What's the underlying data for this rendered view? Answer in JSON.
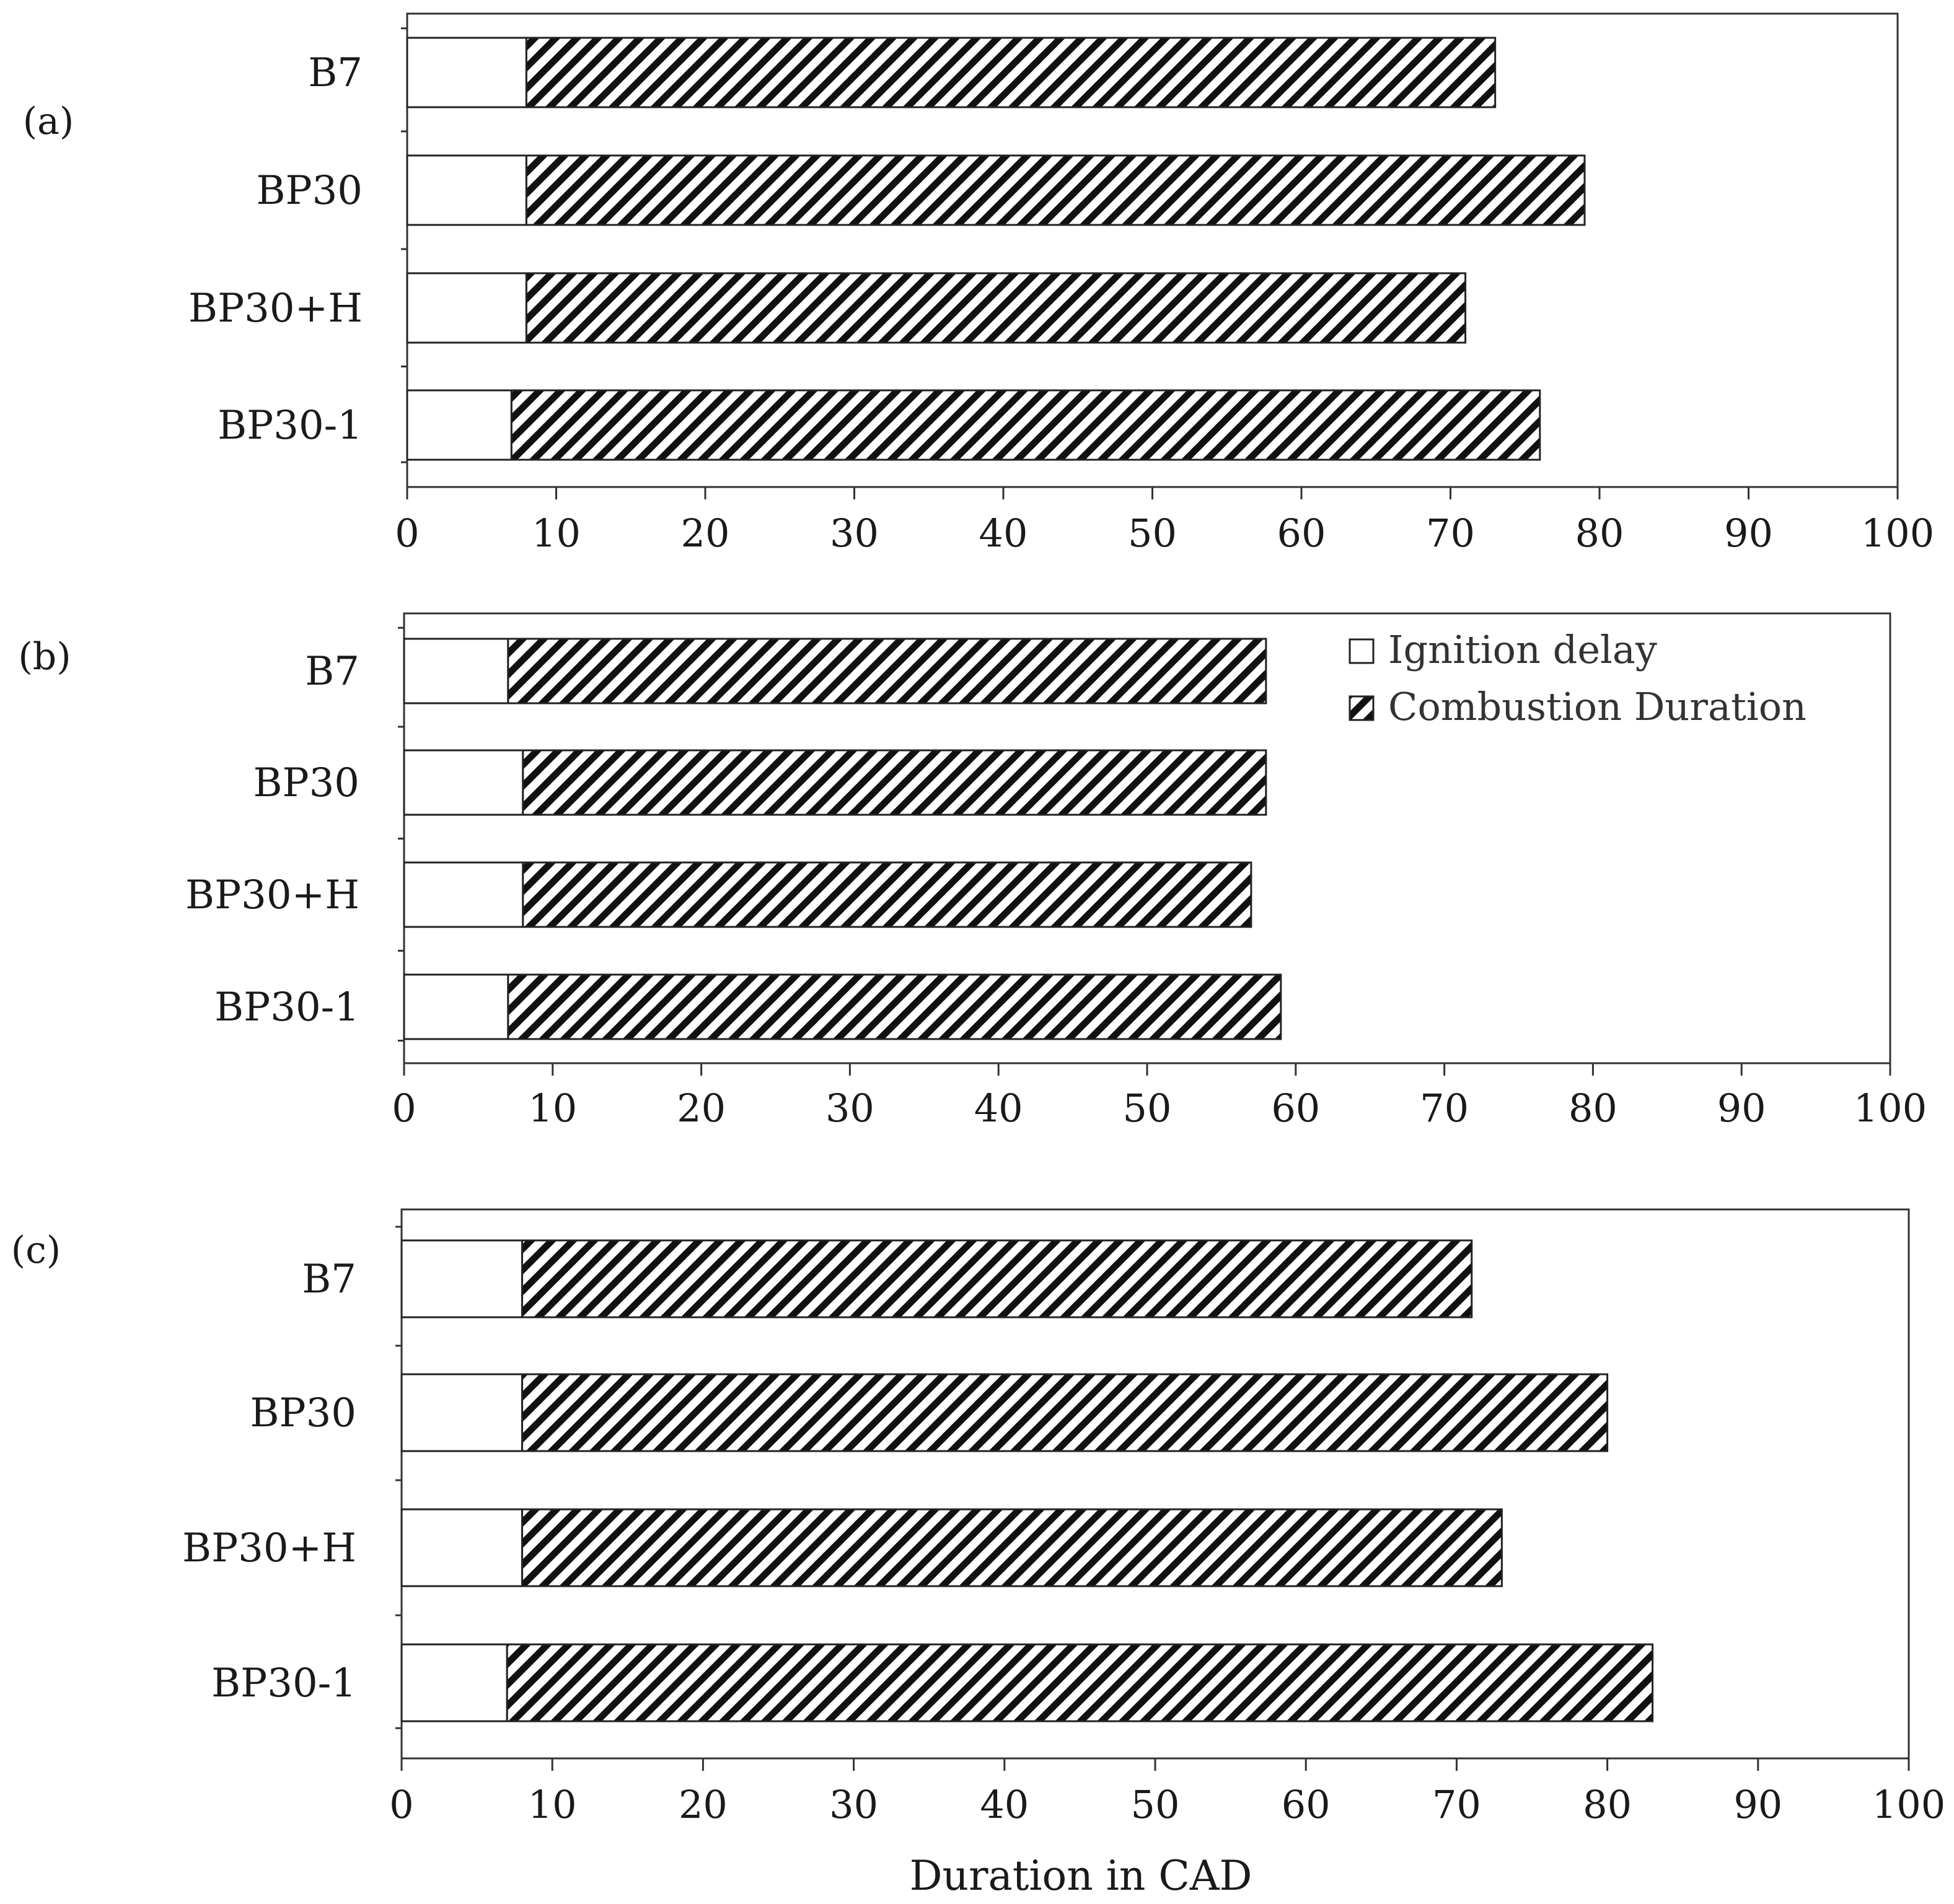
{
  "chart_data": [
    {
      "type": "bar",
      "orientation": "horizontal",
      "stacked": true,
      "panel_label": "(a)",
      "categories": [
        "B7",
        "BP30",
        "BP30+H",
        "BP30-1"
      ],
      "series": [
        {
          "name": "Ignition delay",
          "values": [
            8,
            8,
            8,
            7
          ]
        },
        {
          "name": "Combustion Duration",
          "values": [
            65,
            71,
            63,
            69
          ]
        }
      ],
      "xlim": [
        0,
        100
      ],
      "xticks": [
        0,
        10,
        20,
        30,
        40,
        50,
        60,
        70,
        80,
        90,
        100
      ],
      "xlabel": "",
      "grid": false
    },
    {
      "type": "bar",
      "orientation": "horizontal",
      "stacked": true,
      "panel_label": "(b)",
      "categories": [
        "B7",
        "BP30",
        "BP30+H",
        "BP30-1"
      ],
      "series": [
        {
          "name": "Ignition delay",
          "values": [
            7,
            8,
            8,
            7
          ]
        },
        {
          "name": "Combustion Duration",
          "values": [
            51,
            50,
            49,
            52
          ]
        }
      ],
      "xlim": [
        0,
        100
      ],
      "xticks": [
        0,
        10,
        20,
        30,
        40,
        50,
        60,
        70,
        80,
        90,
        100
      ],
      "xlabel": "",
      "legend": {
        "position": "top-right",
        "entries": [
          "Ignition delay",
          "Combustion Duration"
        ]
      },
      "grid": false
    },
    {
      "type": "bar",
      "orientation": "horizontal",
      "stacked": true,
      "panel_label": "(c)",
      "categories": [
        "B7",
        "BP30",
        "BP30+H",
        "BP30-1"
      ],
      "series": [
        {
          "name": "Ignition delay",
          "values": [
            8,
            8,
            8,
            7
          ]
        },
        {
          "name": "Combustion Duration",
          "values": [
            63,
            72,
            65,
            76
          ]
        }
      ],
      "xlim": [
        0,
        100
      ],
      "xticks": [
        0,
        10,
        20,
        30,
        40,
        50,
        60,
        70,
        80,
        90,
        100
      ],
      "xlabel": "Duration in CAD",
      "grid": false
    }
  ]
}
